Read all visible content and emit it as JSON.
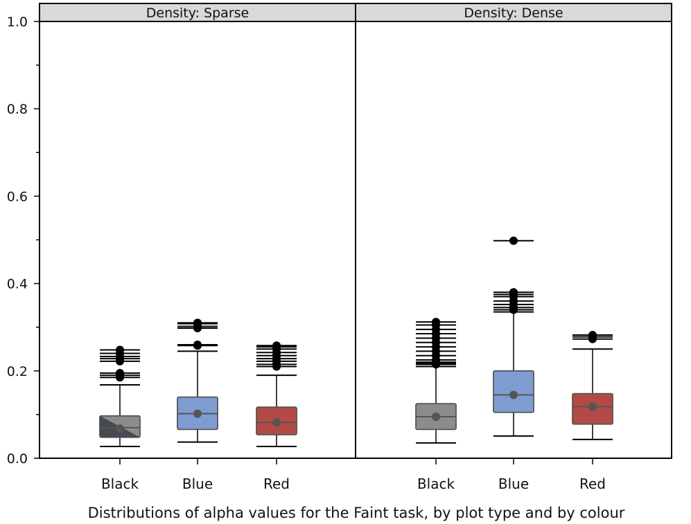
{
  "chart_data": {
    "type": "box",
    "caption": "Distributions of alpha values for the Faint task, by plot type and by colour",
    "ylim": [
      0,
      1
    ],
    "y_ticks": [
      "0.0",
      "0.2",
      "0.4",
      "0.6",
      "0.8",
      "1.0"
    ],
    "y_tick_values": [
      0,
      0.2,
      0.4,
      0.6,
      0.8,
      1.0
    ],
    "categories": [
      "Black",
      "Blue",
      "Red"
    ],
    "colors": {
      "Black": "#8c8c8c",
      "Blue": "#7f9cd1",
      "Red": "#b34a46"
    },
    "panels": [
      {
        "strip": "Density: Sparse",
        "boxes": [
          {
            "category": "Black",
            "whisker_low": 0.027,
            "q1": 0.048,
            "median": 0.07,
            "q3": 0.097,
            "whisker_high": 0.168,
            "mean": 0.068,
            "outliers": [
              0.185,
              0.19,
              0.195,
              0.222,
              0.228,
              0.233,
              0.24,
              0.248
            ]
          },
          {
            "category": "Blue",
            "whisker_low": 0.037,
            "q1": 0.066,
            "median": 0.102,
            "q3": 0.14,
            "whisker_high": 0.245,
            "mean": 0.102,
            "outliers": [
              0.258,
              0.26,
              0.298,
              0.302,
              0.308,
              0.31
            ]
          },
          {
            "category": "Red",
            "whisker_low": 0.027,
            "q1": 0.054,
            "median": 0.082,
            "q3": 0.117,
            "whisker_high": 0.19,
            "mean": 0.082,
            "outliers": [
              0.21,
              0.215,
              0.222,
              0.228,
              0.235,
              0.242,
              0.25,
              0.255,
              0.258
            ]
          }
        ]
      },
      {
        "strip": "Density: Dense",
        "boxes": [
          {
            "category": "Black",
            "whisker_low": 0.035,
            "q1": 0.066,
            "median": 0.095,
            "q3": 0.125,
            "whisker_high": 0.21,
            "mean": 0.095,
            "outliers": [
              0.215,
              0.218,
              0.22,
              0.225,
              0.235,
              0.245,
              0.255,
              0.265,
              0.275,
              0.285,
              0.295,
              0.305,
              0.312
            ]
          },
          {
            "category": "Blue",
            "whisker_low": 0.051,
            "q1": 0.105,
            "median": 0.145,
            "q3": 0.2,
            "whisker_high": 0.335,
            "mean": 0.145,
            "outliers": [
              0.34,
              0.345,
              0.352,
              0.36,
              0.37,
              0.375,
              0.38,
              0.498
            ]
          },
          {
            "category": "Red",
            "whisker_low": 0.043,
            "q1": 0.078,
            "median": 0.118,
            "q3": 0.148,
            "whisker_high": 0.25,
            "mean": 0.118,
            "outliers": [
              0.273,
              0.278,
              0.282
            ]
          }
        ]
      }
    ]
  }
}
